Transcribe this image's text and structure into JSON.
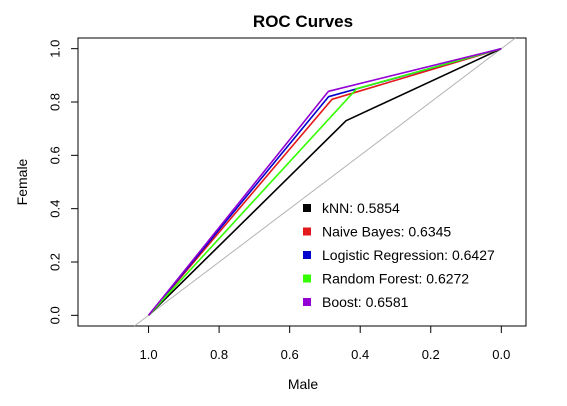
{
  "chart_data": {
    "type": "line",
    "title": "ROC Curves",
    "xlabel": "Male",
    "ylabel": "Female",
    "x_reversed": true,
    "xlim": [
      1.2,
      -0.07
    ],
    "ylim": [
      -0.04,
      1.04
    ],
    "x_ticks": [
      1.0,
      0.8,
      0.6,
      0.4,
      0.2,
      0.0
    ],
    "x_tick_labels": [
      "1.0",
      "0.8",
      "0.6",
      "0.4",
      "0.2",
      "0.0"
    ],
    "y_ticks": [
      0.0,
      0.2,
      0.4,
      0.6,
      0.8,
      1.0
    ],
    "y_tick_labels": [
      "0.0",
      "0.2",
      "0.4",
      "0.6",
      "0.8",
      "1.0"
    ],
    "diagonal": {
      "points": [
        [
          1.04,
          -0.04
        ],
        [
          -0.04,
          1.04
        ]
      ],
      "color": "#b3b3b3"
    },
    "series": [
      {
        "name": "kNN: 0.5854",
        "color": "#000000",
        "points": [
          [
            1.0,
            0.0
          ],
          [
            0.44,
            0.73
          ],
          [
            0.0,
            1.0
          ]
        ]
      },
      {
        "name": "Naive Bayes: 0.6345",
        "color": "#e31a1c",
        "points": [
          [
            1.0,
            0.0
          ],
          [
            0.48,
            0.81
          ],
          [
            0.0,
            1.0
          ]
        ]
      },
      {
        "name": "Logistic Regression: 0.6427",
        "color": "#0000cd",
        "points": [
          [
            1.0,
            0.0
          ],
          [
            0.49,
            0.82
          ],
          [
            0.0,
            1.0
          ]
        ]
      },
      {
        "name": "Random Forest: 0.6272",
        "color": "#33ff00",
        "points": [
          [
            1.0,
            0.0
          ],
          [
            0.41,
            0.85
          ],
          [
            0.0,
            1.0
          ]
        ]
      },
      {
        "name": "Boost: 0.6581",
        "color": "#9400d3",
        "points": [
          [
            1.0,
            0.0
          ],
          [
            0.49,
            0.84
          ],
          [
            0.0,
            1.0
          ]
        ]
      }
    ],
    "legend": {
      "position": "bottom-right"
    },
    "grid": false
  }
}
